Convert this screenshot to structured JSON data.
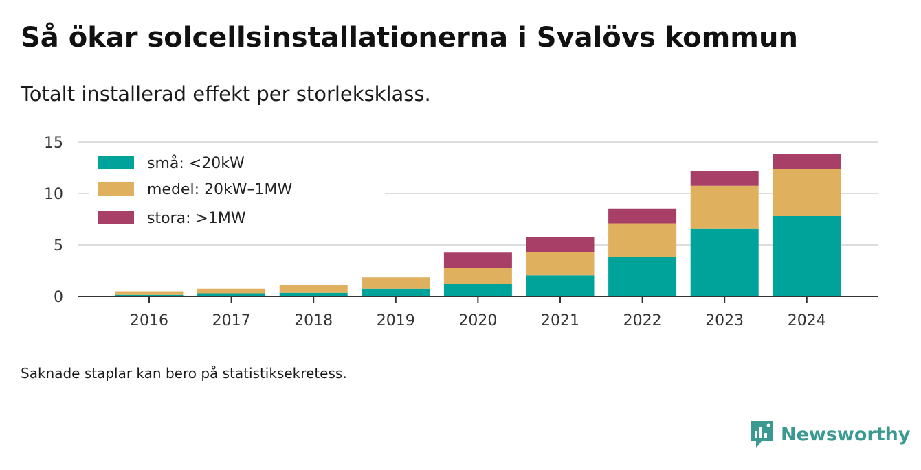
{
  "header": {
    "title": "Så ökar solcellsinstallationerna i Svalövs kommun",
    "subtitle": "Totalt installerad effekt per storleksklass."
  },
  "footer": {
    "note": "Saknade staplar kan bero på statistiksekretess.",
    "brand": "Newsworthy",
    "brand_icon": "bar-chart-speech-bubble-icon"
  },
  "colors": {
    "small": "#00a39a",
    "medium": "#dfb05d",
    "large": "#a83f67",
    "brand": "#3a9a91"
  },
  "chart_data": {
    "type": "bar",
    "stacked": true,
    "categories": [
      "2016",
      "2017",
      "2018",
      "2019",
      "2020",
      "2021",
      "2022",
      "2023",
      "2024"
    ],
    "series": [
      {
        "name": "små: <20kW",
        "color": "#00a39a",
        "values": [
          0.15,
          0.3,
          0.35,
          0.75,
          1.2,
          2.05,
          3.85,
          6.55,
          7.8
        ]
      },
      {
        "name": "medel: 20kW–1MW",
        "color": "#dfb05d",
        "values": [
          0.35,
          0.45,
          0.75,
          1.1,
          1.6,
          2.25,
          3.25,
          4.2,
          4.55
        ]
      },
      {
        "name": "stora: >1MW",
        "color": "#a83f67",
        "values": [
          0,
          0,
          0,
          0,
          1.45,
          1.5,
          1.45,
          1.45,
          1.45
        ]
      }
    ],
    "yticks": [
      "0",
      "5",
      "10",
      "15"
    ],
    "ylim": [
      0,
      15
    ],
    "grid": true,
    "legend_position": "top-left"
  }
}
